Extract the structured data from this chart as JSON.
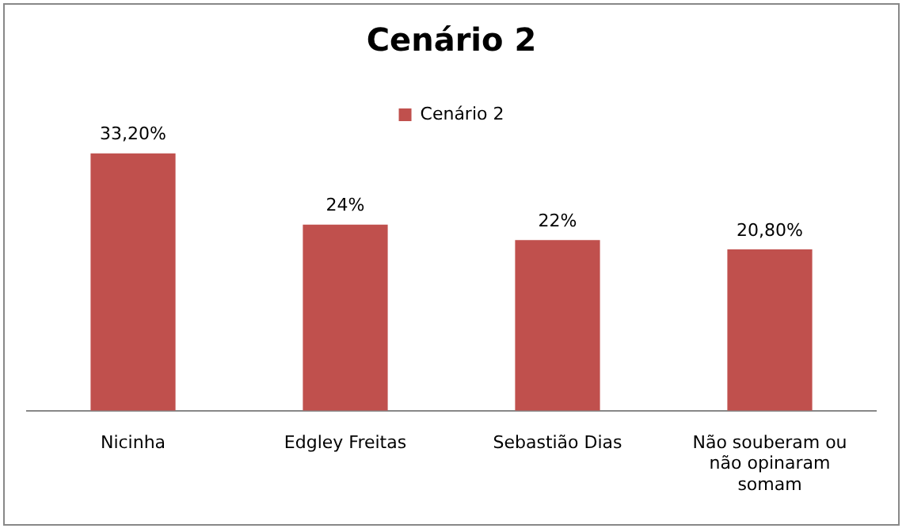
{
  "chart_data": {
    "type": "bar",
    "title": "Cenário 2",
    "categories": [
      "Nicinha",
      "Edgley Freitas",
      "Sebastião Dias",
      "Não souberam ou não opinaram somam"
    ],
    "series": [
      {
        "name": "Cenário 2",
        "color": "#c0504d",
        "values": [
          33.2,
          24,
          22,
          20.8
        ],
        "value_labels": [
          "33,20%",
          "24%",
          "22%",
          "20,80%"
        ]
      }
    ],
    "legend": "top",
    "grid": false,
    "tick_labels": "x"
  }
}
